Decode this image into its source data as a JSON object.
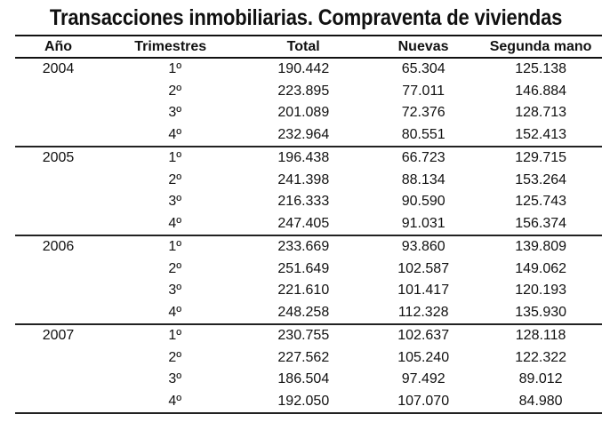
{
  "title": "Transacciones inmobiliarias. Compraventa de viviendas",
  "table": {
    "headers": {
      "year": "Año",
      "quarter": "Trimestres",
      "total": "Total",
      "new": "Nuevas",
      "second_hand": "Segunda mano"
    },
    "groups": [
      {
        "year": "2004",
        "rows": [
          {
            "quarter": "1º",
            "total": "190.442",
            "new": "65.304",
            "second_hand": "125.138"
          },
          {
            "quarter": "2º",
            "total": "223.895",
            "new": "77.011",
            "second_hand": "146.884"
          },
          {
            "quarter": "3º",
            "total": "201.089",
            "new": "72.376",
            "second_hand": "128.713"
          },
          {
            "quarter": "4º",
            "total": "232.964",
            "new": "80.551",
            "second_hand": "152.413"
          }
        ]
      },
      {
        "year": "2005",
        "rows": [
          {
            "quarter": "1º",
            "total": "196.438",
            "new": "66.723",
            "second_hand": "129.715"
          },
          {
            "quarter": "2º",
            "total": "241.398",
            "new": "88.134",
            "second_hand": "153.264"
          },
          {
            "quarter": "3º",
            "total": "216.333",
            "new": "90.590",
            "second_hand": "125.743"
          },
          {
            "quarter": "4º",
            "total": "247.405",
            "new": "91.031",
            "second_hand": "156.374"
          }
        ]
      },
      {
        "year": "2006",
        "rows": [
          {
            "quarter": "1º",
            "total": "233.669",
            "new": "93.860",
            "second_hand": "139.809"
          },
          {
            "quarter": "2º",
            "total": "251.649",
            "new": "102.587",
            "second_hand": "149.062"
          },
          {
            "quarter": "3º",
            "total": "221.610",
            "new": "101.417",
            "second_hand": "120.193"
          },
          {
            "quarter": "4º",
            "total": "248.258",
            "new": "112.328",
            "second_hand": "135.930"
          }
        ]
      },
      {
        "year": "2007",
        "rows": [
          {
            "quarter": "1º",
            "total": "230.755",
            "new": "102.637",
            "second_hand": "128.118"
          },
          {
            "quarter": "2º",
            "total": "227.562",
            "new": "105.240",
            "second_hand": "122.322"
          },
          {
            "quarter": "3º",
            "total": "186.504",
            "new": "97.492",
            "second_hand": "89.012"
          },
          {
            "quarter": "4º",
            "total": "192.050",
            "new": "107.070",
            "second_hand": "84.980"
          }
        ]
      }
    ]
  }
}
